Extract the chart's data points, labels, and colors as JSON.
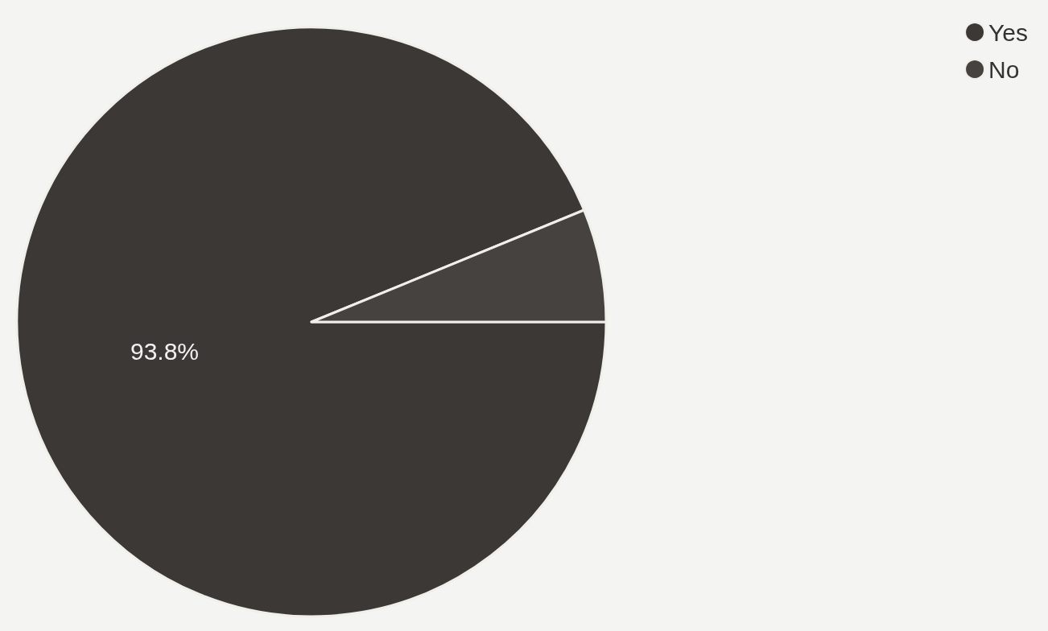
{
  "chart_data": {
    "type": "pie",
    "categories": [
      "Yes",
      "No"
    ],
    "values": [
      93.8,
      6.2
    ],
    "colors": [
      "#3b3836",
      "#46423f"
    ],
    "value_labels": [
      "93.8%",
      null
    ],
    "legend": "top right"
  }
}
